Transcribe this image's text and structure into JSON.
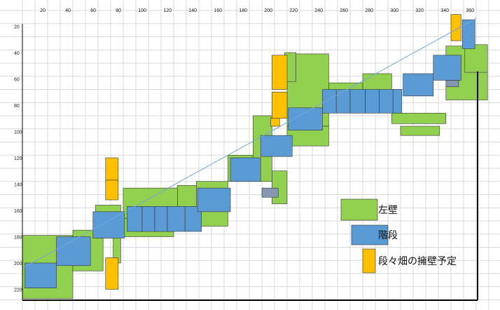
{
  "colors": {
    "wall": "#92d050",
    "stairs": "#5b9bd5",
    "retaining": "#ffc000",
    "landing": "#8496b0",
    "guide": "#6fa8dc",
    "grid": "#d9d9d9",
    "frame": "#000000"
  },
  "axes": {
    "x_ticks": [
      "20",
      "40",
      "60",
      "80",
      "100",
      "120",
      "140",
      "160",
      "180",
      "200",
      "220",
      "240",
      "260",
      "280",
      "300",
      "320",
      "340",
      "360"
    ],
    "y_ticks": [
      "20",
      "40",
      "60",
      "80",
      "100",
      "120",
      "140",
      "160",
      "180",
      "200",
      "220"
    ]
  },
  "legend": [
    {
      "key": "wall",
      "label": "左壁"
    },
    {
      "key": "stairs",
      "label": "階段"
    },
    {
      "key": "retaining",
      "label": "段々畑の擁壁予定"
    }
  ],
  "diagram": {
    "x_range": [
      0,
      380
    ],
    "y_range": [
      0,
      227
    ],
    "guide_line": [
      [
        0,
        204
      ],
      [
        360,
        14
      ]
    ],
    "walls": [
      [
        0,
        179,
        40,
        227
      ],
      [
        40,
        175,
        64,
        206
      ],
      [
        58,
        156,
        78,
        181
      ],
      [
        72,
        163,
        78,
        200
      ],
      [
        80,
        166,
        120,
        180
      ],
      [
        80,
        143,
        123,
        166
      ],
      [
        123,
        141,
        138,
        165
      ],
      [
        138,
        138,
        163,
        172
      ],
      [
        163,
        118,
        183,
        138
      ],
      [
        183,
        88,
        198,
        138
      ],
      [
        198,
        130,
        210,
        155
      ],
      [
        210,
        41,
        243,
        96
      ],
      [
        210,
        96,
        243,
        111
      ],
      [
        208,
        40,
        217,
        62
      ],
      [
        243,
        63,
        270,
        69
      ],
      [
        270,
        56,
        293,
        71
      ],
      [
        293,
        86,
        336,
        94
      ],
      [
        300,
        96,
        331,
        103
      ],
      [
        336,
        35,
        369,
        76
      ],
      [
        351,
        34,
        369,
        55
      ]
    ],
    "stairs": [
      [
        2,
        200,
        27,
        219
      ],
      [
        27,
        180,
        54,
        202
      ],
      [
        56,
        161,
        81,
        181
      ],
      [
        83,
        157,
        95,
        176
      ],
      [
        95,
        157,
        105,
        176
      ],
      [
        105,
        157,
        115,
        176
      ],
      [
        115,
        157,
        129,
        176
      ],
      [
        129,
        157,
        142,
        176
      ],
      [
        139,
        143,
        165,
        161
      ],
      [
        165,
        120,
        189,
        138
      ],
      [
        189,
        103,
        214,
        119
      ],
      [
        211,
        82,
        238,
        99
      ],
      [
        238,
        68,
        249,
        86
      ],
      [
        249,
        68,
        260,
        86
      ],
      [
        260,
        68,
        272,
        86
      ],
      [
        272,
        68,
        283,
        86
      ],
      [
        283,
        68,
        294,
        86
      ],
      [
        294,
        68,
        301,
        86
      ],
      [
        302,
        56,
        326,
        73
      ],
      [
        326,
        42,
        348,
        61
      ],
      [
        349,
        15,
        359,
        37
      ]
    ],
    "retaining": [
      [
        66,
        120,
        76,
        137
      ],
      [
        66,
        137,
        76,
        152
      ],
      [
        66,
        196,
        76,
        220
      ],
      [
        198,
        42,
        210,
        68
      ],
      [
        198,
        70,
        210,
        90
      ],
      [
        197,
        90,
        204,
        96
      ],
      [
        340,
        11,
        348,
        31
      ]
    ],
    "landings": [
      [
        190,
        143,
        203,
        150
      ],
      [
        336,
        61,
        346,
        66
      ]
    ]
  }
}
